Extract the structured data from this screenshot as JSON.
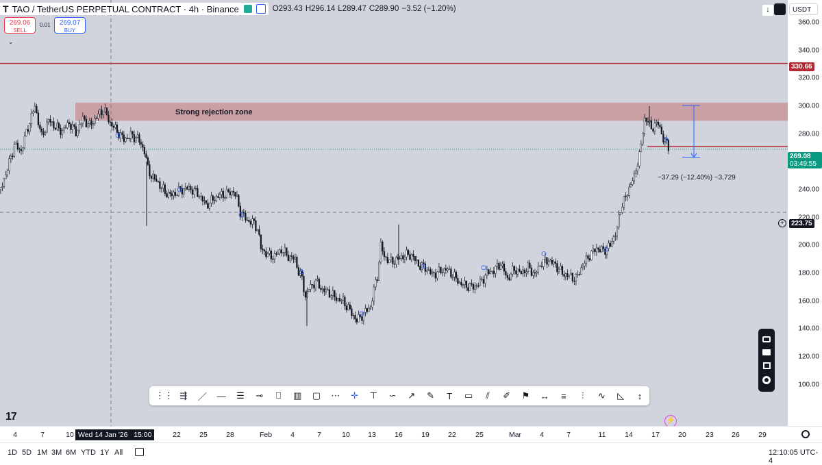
{
  "header": {
    "symbol": "TAO / TetherUS PERPETUAL CONTRACT · 4h · Binance",
    "ohlc": {
      "open": "O293.43",
      "high": "H296.14",
      "low": "L289.47",
      "close": "C289.90",
      "change": "−3.52 (−1.20%)"
    },
    "sell_price": "269.06",
    "sell_label": "SELL",
    "spread": "0.01",
    "buy_price": "269.07",
    "buy_label": "BUY",
    "currency": "USDT"
  },
  "annotations": {
    "zone_label": "Strong rejection zone",
    "measure_label": "−37.29 (−12.40%) −3,729"
  },
  "price_axis": {
    "ticks": [
      "360.00",
      "340.00",
      "320.00",
      "300.00",
      "280.00",
      "260.00",
      "240.00",
      "220.00",
      "200.00",
      "180.00",
      "160.00",
      "140.00",
      "120.00",
      "100.00"
    ],
    "resistance_label": "330.66",
    "last_price_label": "269.08",
    "countdown_label": "03:49:55",
    "crosshair_label": "223.75"
  },
  "time_axis": {
    "labels": [
      "4",
      "7",
      "10",
      "19",
      "22",
      "25",
      "28",
      "Feb",
      "4",
      "7",
      "10",
      "13",
      "16",
      "19",
      "22",
      "25",
      "Mar",
      "4",
      "7",
      "11",
      "14",
      "17",
      "20",
      "23",
      "26",
      "29"
    ],
    "crosshair_label": "Wed 14 Jan '26   15:00"
  },
  "bottom_bar": {
    "ranges": [
      "1D",
      "5D",
      "1M",
      "3M",
      "6M",
      "YTD",
      "1Y",
      "All"
    ],
    "clock": "12:10:05 UTC-4"
  },
  "toolbar_icons": [
    "drag-handle-icon",
    "ray-tool-icon",
    "trend-line-icon",
    "horizontal-line-icon",
    "parallel-channel-icon",
    "horizontal-ray-icon",
    "callout-icon",
    "long-position-icon",
    "rectangle-icon",
    "path-icon",
    "cross-line-icon",
    "text-anchor-icon",
    "curve-icon",
    "arrow-icon",
    "brush-icon",
    "text-icon",
    "note-icon",
    "fib-icon",
    "pencil-icon",
    "flag-icon",
    "date-range-icon",
    "date-price-range-icon",
    "forecast-icon",
    "elliott-wave-icon",
    "triangle-icon",
    "vertical-line-icon"
  ],
  "colors": {
    "chart_bg": "#d1d4dc",
    "zone": "#c9979a",
    "resistance": "#b22833",
    "last_price": "#089981",
    "measure": "#2962ff",
    "candle": "#131722"
  },
  "chart_data": {
    "type": "candlestick",
    "ylim": [
      95,
      365
    ],
    "current_price": 269.08,
    "resistance_level": 330.66,
    "crosshair_price": 223.75,
    "rejection_zone": [
      289.5,
      302.5
    ],
    "measure": {
      "from": 300.5,
      "to": 263.2,
      "change": -37.29,
      "percent": -12.4
    },
    "path": [
      [
        0,
        240
      ],
      [
        10,
        255
      ],
      [
        20,
        272
      ],
      [
        30,
        268
      ],
      [
        40,
        285
      ],
      [
        50,
        300
      ],
      [
        60,
        278
      ],
      [
        70,
        290
      ],
      [
        80,
        285
      ],
      [
        90,
        282
      ],
      [
        100,
        288
      ],
      [
        110,
        281
      ],
      [
        120,
        291
      ],
      [
        130,
        286
      ],
      [
        140,
        292
      ],
      [
        150,
        298
      ],
      [
        160,
        288
      ],
      [
        170,
        282
      ],
      [
        180,
        276
      ],
      [
        190,
        279
      ],
      [
        200,
        277
      ],
      [
        210,
        268
      ],
      [
        215,
        255
      ],
      [
        220,
        250
      ],
      [
        230,
        245
      ],
      [
        240,
        238
      ],
      [
        250,
        236
      ],
      [
        260,
        239
      ],
      [
        270,
        241
      ],
      [
        280,
        240
      ],
      [
        290,
        236
      ],
      [
        300,
        229
      ],
      [
        310,
        233
      ],
      [
        320,
        236
      ],
      [
        330,
        237
      ],
      [
        340,
        239
      ],
      [
        345,
        233
      ],
      [
        350,
        224
      ],
      [
        360,
        218
      ],
      [
        370,
        216
      ],
      [
        375,
        212
      ],
      [
        380,
        198
      ],
      [
        390,
        193
      ],
      [
        400,
        192
      ],
      [
        410,
        197
      ],
      [
        420,
        192
      ],
      [
        430,
        190
      ],
      [
        435,
        181
      ],
      [
        440,
        176
      ],
      [
        445,
        163
      ],
      [
        450,
        169
      ],
      [
        460,
        174
      ],
      [
        470,
        168
      ],
      [
        480,
        166
      ],
      [
        490,
        162
      ],
      [
        500,
        160
      ],
      [
        510,
        153
      ],
      [
        520,
        146
      ],
      [
        530,
        151
      ],
      [
        540,
        156
      ],
      [
        545,
        168
      ],
      [
        550,
        178
      ],
      [
        555,
        200
      ],
      [
        560,
        192
      ],
      [
        570,
        188
      ],
      [
        580,
        190
      ],
      [
        590,
        193
      ],
      [
        600,
        193
      ],
      [
        610,
        186
      ],
      [
        620,
        184
      ],
      [
        630,
        179
      ],
      [
        640,
        181
      ],
      [
        650,
        183
      ],
      [
        660,
        179
      ],
      [
        670,
        173
      ],
      [
        680,
        171
      ],
      [
        690,
        170
      ],
      [
        700,
        173
      ],
      [
        710,
        180
      ],
      [
        720,
        182
      ],
      [
        730,
        187
      ],
      [
        740,
        176
      ],
      [
        750,
        183
      ],
      [
        760,
        180
      ],
      [
        770,
        184
      ],
      [
        780,
        179
      ],
      [
        790,
        188
      ],
      [
        800,
        189
      ],
      [
        810,
        186
      ],
      [
        820,
        180
      ],
      [
        830,
        178
      ],
      [
        840,
        176
      ],
      [
        850,
        186
      ],
      [
        860,
        193
      ],
      [
        870,
        198
      ],
      [
        880,
        196
      ],
      [
        890,
        200
      ],
      [
        900,
        212
      ],
      [
        905,
        226
      ],
      [
        910,
        233
      ],
      [
        915,
        236
      ],
      [
        920,
        246
      ],
      [
        925,
        248
      ],
      [
        930,
        260
      ],
      [
        935,
        272
      ],
      [
        940,
        290
      ],
      [
        945,
        291
      ],
      [
        950,
        282
      ],
      [
        955,
        288
      ],
      [
        960,
        287
      ],
      [
        965,
        280
      ],
      [
        970,
        275
      ],
      [
        975,
        270
      ]
    ]
  }
}
